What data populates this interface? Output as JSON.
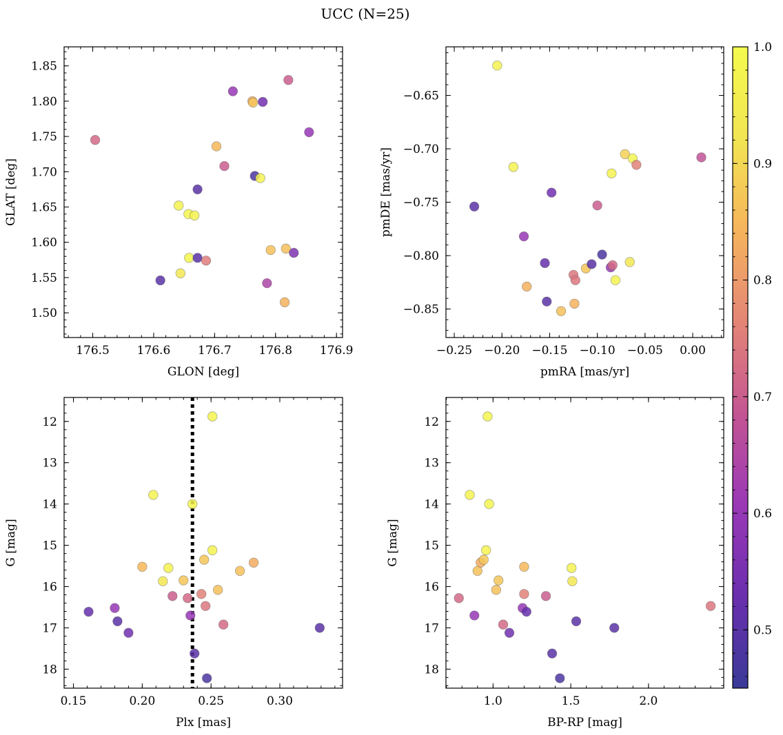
{
  "figure_title": "UCC (N=25)",
  "colorbar": {
    "range": [
      0.45,
      1.0
    ],
    "tick_values": [
      0.5,
      0.6,
      0.7,
      0.8,
      0.9,
      1.0
    ],
    "tick_labels": [
      "0.5",
      "0.6",
      "0.7",
      "0.8",
      "0.9",
      "1.0"
    ],
    "colormap": "plasma",
    "stops": [
      "#3a3a98",
      "#6a2fae",
      "#9a38b6",
      "#c45593",
      "#e48576",
      "#f6b45c",
      "#f2e552",
      "#f4fa4e"
    ]
  },
  "point_alpha": 0.85,
  "chart_data": [
    {
      "type": "scatter",
      "id": "glon-glat",
      "xlabel": "GLON [deg]",
      "ylabel": "GLAT [deg]",
      "xlim": [
        176.453,
        176.91
      ],
      "ylim": [
        1.465,
        1.877
      ],
      "y_inverted": false,
      "xticks": [
        176.5,
        176.6,
        176.7,
        176.8,
        176.9
      ],
      "xtick_labels": [
        "176.5",
        "176.6",
        "176.7",
        "176.8",
        "176.9"
      ],
      "yticks": [
        1.5,
        1.55,
        1.6,
        1.65,
        1.7,
        1.75,
        1.8,
        1.85
      ],
      "ytick_labels": [
        "1.50",
        "1.55",
        "1.60",
        "1.65",
        "1.70",
        "1.75",
        "1.80",
        "1.85"
      ],
      "points": [
        {
          "x": 176.504,
          "y": 1.745,
          "c": 0.72
        },
        {
          "x": 176.611,
          "y": 1.546,
          "c": 0.5
        },
        {
          "x": 176.641,
          "y": 1.652,
          "c": 0.97
        },
        {
          "x": 176.644,
          "y": 1.556,
          "c": 0.93
        },
        {
          "x": 176.657,
          "y": 1.64,
          "c": 0.98
        },
        {
          "x": 176.658,
          "y": 1.578,
          "c": 0.98
        },
        {
          "x": 176.667,
          "y": 1.638,
          "c": 0.97
        },
        {
          "x": 176.672,
          "y": 1.675,
          "c": 0.5
        },
        {
          "x": 176.672,
          "y": 1.578,
          "c": 0.5
        },
        {
          "x": 176.686,
          "y": 1.574,
          "c": 0.75
        },
        {
          "x": 176.703,
          "y": 1.736,
          "c": 0.85
        },
        {
          "x": 176.716,
          "y": 1.708,
          "c": 0.7
        },
        {
          "x": 176.73,
          "y": 1.814,
          "c": 0.6
        },
        {
          "x": 176.762,
          "y": 1.8,
          "c": 0.83
        },
        {
          "x": 176.763,
          "y": 1.798,
          "c": 0.87
        },
        {
          "x": 176.766,
          "y": 1.694,
          "c": 0.48
        },
        {
          "x": 176.775,
          "y": 1.691,
          "c": 0.97
        },
        {
          "x": 176.779,
          "y": 1.799,
          "c": 0.54
        },
        {
          "x": 176.786,
          "y": 1.542,
          "c": 0.64
        },
        {
          "x": 176.792,
          "y": 1.589,
          "c": 0.86
        },
        {
          "x": 176.815,
          "y": 1.515,
          "c": 0.84
        },
        {
          "x": 176.817,
          "y": 1.591,
          "c": 0.86
        },
        {
          "x": 176.821,
          "y": 1.83,
          "c": 0.7
        },
        {
          "x": 176.83,
          "y": 1.585,
          "c": 0.56
        },
        {
          "x": 176.855,
          "y": 1.756,
          "c": 0.6
        }
      ]
    },
    {
      "type": "scatter",
      "id": "pmra-pmde",
      "xlabel": "pmRA [mas/yr]",
      "ylabel": "pmDE [mas/yr]",
      "xlim": [
        -0.2587,
        0.0325
      ],
      "ylim": [
        -0.8767,
        -0.6045
      ],
      "y_inverted": false,
      "xticks": [
        -0.25,
        -0.2,
        -0.15,
        -0.1,
        -0.05,
        0.0
      ],
      "xtick_labels": [
        "−0.25",
        "−0.20",
        "−0.15",
        "−0.10",
        "−0.05",
        "0.00"
      ],
      "yticks": [
        -0.85,
        -0.8,
        -0.75,
        -0.7,
        -0.65
      ],
      "ytick_labels": [
        "−0.85",
        "−0.80",
        "−0.75",
        "−0.70",
        "−0.65"
      ],
      "points": [
        {
          "x": -0.229,
          "y": -0.754,
          "c": 0.5
        },
        {
          "x": -0.205,
          "y": -0.622,
          "c": 0.97
        },
        {
          "x": -0.188,
          "y": -0.717,
          "c": 0.97
        },
        {
          "x": -0.177,
          "y": -0.782,
          "c": 0.6
        },
        {
          "x": -0.174,
          "y": -0.829,
          "c": 0.84
        },
        {
          "x": -0.155,
          "y": -0.807,
          "c": 0.52
        },
        {
          "x": -0.153,
          "y": -0.843,
          "c": 0.5
        },
        {
          "x": -0.148,
          "y": -0.741,
          "c": 0.54
        },
        {
          "x": -0.138,
          "y": -0.852,
          "c": 0.86
        },
        {
          "x": -0.125,
          "y": -0.818,
          "c": 0.74
        },
        {
          "x": -0.124,
          "y": -0.845,
          "c": 0.84
        },
        {
          "x": -0.123,
          "y": -0.823,
          "c": 0.74
        },
        {
          "x": -0.112,
          "y": -0.812,
          "c": 0.87
        },
        {
          "x": -0.106,
          "y": -0.808,
          "c": 0.5
        },
        {
          "x": -0.1,
          "y": -0.753,
          "c": 0.7
        },
        {
          "x": -0.095,
          "y": -0.799,
          "c": 0.48
        },
        {
          "x": -0.086,
          "y": -0.811,
          "c": 0.6
        },
        {
          "x": -0.085,
          "y": -0.723,
          "c": 0.97
        },
        {
          "x": -0.084,
          "y": -0.809,
          "c": 0.72
        },
        {
          "x": -0.081,
          "y": -0.823,
          "c": 0.97
        },
        {
          "x": -0.071,
          "y": -0.705,
          "c": 0.89
        },
        {
          "x": -0.066,
          "y": -0.806,
          "c": 0.93
        },
        {
          "x": -0.063,
          "y": -0.709,
          "c": 0.98
        },
        {
          "x": -0.059,
          "y": -0.715,
          "c": 0.76
        },
        {
          "x": 0.009,
          "y": -0.708,
          "c": 0.68
        }
      ]
    },
    {
      "type": "scatter",
      "id": "plx-g",
      "xlabel": "Plx [mas]",
      "ylabel": "G [mag]",
      "xlim": [
        0.1432,
        0.3456
      ],
      "ylim": [
        18.46,
        11.42
      ],
      "y_inverted": true,
      "xticks": [
        0.15,
        0.2,
        0.25,
        0.3
      ],
      "xtick_labels": [
        "0.15",
        "0.20",
        "0.25",
        "0.30"
      ],
      "yticks": [
        12,
        13,
        14,
        15,
        16,
        17,
        18
      ],
      "ytick_labels": [
        "12",
        "13",
        "14",
        "15",
        "16",
        "17",
        "18"
      ],
      "vline_x": 0.2365,
      "points": [
        {
          "x": 0.161,
          "y": 16.61,
          "c": 0.52
        },
        {
          "x": 0.18,
          "y": 16.52,
          "c": 0.6
        },
        {
          "x": 0.182,
          "y": 16.84,
          "c": 0.5
        },
        {
          "x": 0.19,
          "y": 17.12,
          "c": 0.54
        },
        {
          "x": 0.2,
          "y": 15.52,
          "c": 0.85
        },
        {
          "x": 0.208,
          "y": 13.78,
          "c": 0.97
        },
        {
          "x": 0.215,
          "y": 15.87,
          "c": 0.93
        },
        {
          "x": 0.219,
          "y": 15.55,
          "c": 0.97
        },
        {
          "x": 0.222,
          "y": 16.23,
          "c": 0.7
        },
        {
          "x": 0.23,
          "y": 15.85,
          "c": 0.87
        },
        {
          "x": 0.233,
          "y": 16.28,
          "c": 0.72
        },
        {
          "x": 0.235,
          "y": 16.7,
          "c": 0.6
        },
        {
          "x": 0.2365,
          "y": 14.0,
          "c": 0.98
        },
        {
          "x": 0.238,
          "y": 17.62,
          "c": 0.5
        },
        {
          "x": 0.243,
          "y": 16.18,
          "c": 0.76
        },
        {
          "x": 0.245,
          "y": 15.35,
          "c": 0.87
        },
        {
          "x": 0.246,
          "y": 16.47,
          "c": 0.74
        },
        {
          "x": 0.247,
          "y": 18.22,
          "c": 0.48
        },
        {
          "x": 0.251,
          "y": 11.88,
          "c": 0.98
        },
        {
          "x": 0.251,
          "y": 15.12,
          "c": 0.97
        },
        {
          "x": 0.255,
          "y": 16.08,
          "c": 0.86
        },
        {
          "x": 0.259,
          "y": 16.92,
          "c": 0.72
        },
        {
          "x": 0.271,
          "y": 15.62,
          "c": 0.86
        },
        {
          "x": 0.281,
          "y": 15.42,
          "c": 0.83
        },
        {
          "x": 0.329,
          "y": 17.0,
          "c": 0.5
        }
      ]
    },
    {
      "type": "scatter",
      "id": "bprp-g",
      "xlabel": "BP-RP [mag]",
      "ylabel": "G [mag]",
      "xlim": [
        0.697,
        2.484
      ],
      "ylim": [
        18.46,
        11.42
      ],
      "y_inverted": true,
      "xticks": [
        1.0,
        1.5,
        2.0
      ],
      "xtick_labels": [
        "1.0",
        "1.5",
        "2.0"
      ],
      "yticks": [
        12,
        13,
        14,
        15,
        16,
        17,
        18
      ],
      "ytick_labels": [
        "12",
        "13",
        "14",
        "15",
        "16",
        "17",
        "18"
      ],
      "points": [
        {
          "x": 0.78,
          "y": 16.28,
          "c": 0.72
        },
        {
          "x": 0.85,
          "y": 13.78,
          "c": 0.97
        },
        {
          "x": 0.88,
          "y": 16.7,
          "c": 0.6
        },
        {
          "x": 0.9,
          "y": 15.62,
          "c": 0.86
        },
        {
          "x": 0.92,
          "y": 15.42,
          "c": 0.83
        },
        {
          "x": 0.94,
          "y": 15.35,
          "c": 0.87
        },
        {
          "x": 0.955,
          "y": 15.12,
          "c": 0.97
        },
        {
          "x": 0.965,
          "y": 11.88,
          "c": 0.98
        },
        {
          "x": 0.975,
          "y": 14.0,
          "c": 0.98
        },
        {
          "x": 1.02,
          "y": 16.08,
          "c": 0.86
        },
        {
          "x": 1.035,
          "y": 15.85,
          "c": 0.87
        },
        {
          "x": 1.065,
          "y": 16.92,
          "c": 0.72
        },
        {
          "x": 1.105,
          "y": 17.12,
          "c": 0.54
        },
        {
          "x": 1.19,
          "y": 16.52,
          "c": 0.6
        },
        {
          "x": 1.2,
          "y": 15.52,
          "c": 0.85
        },
        {
          "x": 1.2,
          "y": 16.18,
          "c": 0.76
        },
        {
          "x": 1.215,
          "y": 16.61,
          "c": 0.52
        },
        {
          "x": 1.34,
          "y": 16.23,
          "c": 0.7
        },
        {
          "x": 1.38,
          "y": 17.62,
          "c": 0.5
        },
        {
          "x": 1.43,
          "y": 18.22,
          "c": 0.48
        },
        {
          "x": 1.505,
          "y": 15.55,
          "c": 0.97
        },
        {
          "x": 1.51,
          "y": 15.87,
          "c": 0.93
        },
        {
          "x": 1.535,
          "y": 16.84,
          "c": 0.5
        },
        {
          "x": 1.78,
          "y": 17.0,
          "c": 0.5
        },
        {
          "x": 2.4,
          "y": 16.47,
          "c": 0.74
        }
      ]
    }
  ]
}
